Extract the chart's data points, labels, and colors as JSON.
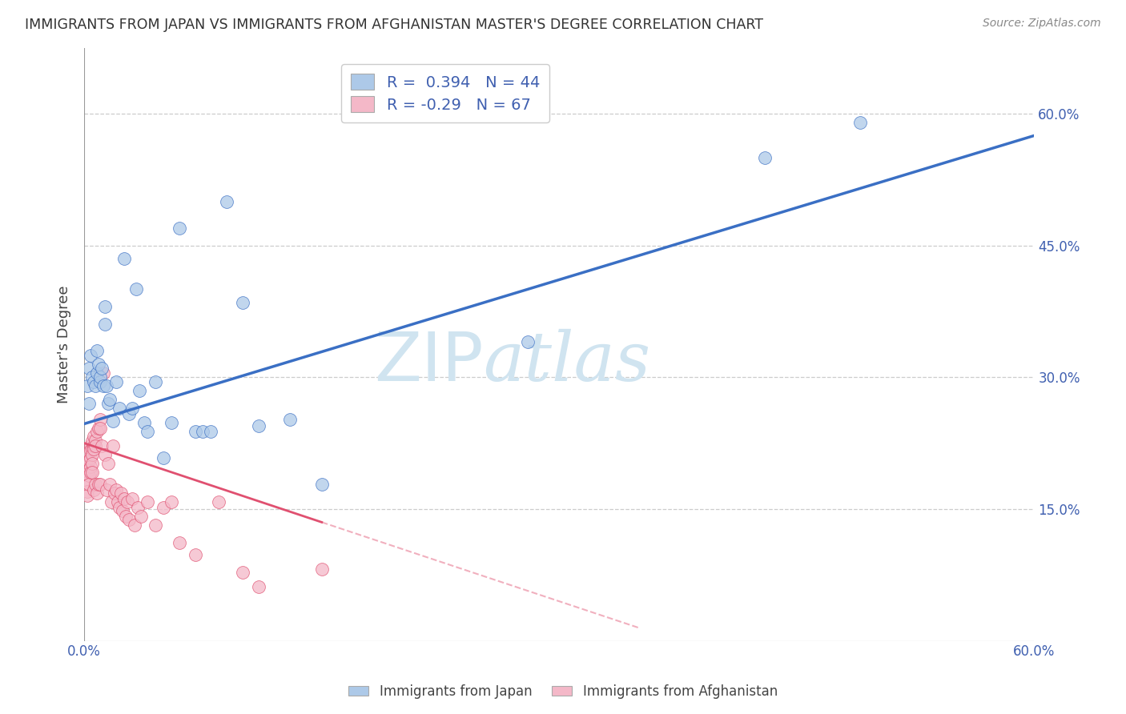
{
  "title": "IMMIGRANTS FROM JAPAN VS IMMIGRANTS FROM AFGHANISTAN MASTER'S DEGREE CORRELATION CHART",
  "source": "Source: ZipAtlas.com",
  "ylabel": "Master's Degree",
  "legend_japan_label": "Immigrants from Japan",
  "legend_afghanistan_label": "Immigrants from Afghanistan",
  "japan_R": 0.394,
  "japan_N": 44,
  "afghanistan_R": -0.29,
  "afghanistan_N": 67,
  "japan_color": "#adc9e8",
  "japan_line_color": "#3a6fc4",
  "afghanistan_color": "#f4b8c8",
  "afghanistan_line_color": "#e05070",
  "watermark_color": "#d0e4f0",
  "background_color": "#ffffff",
  "grid_color": "#cccccc",
  "xlim": [
    0.0,
    0.6
  ],
  "ylim": [
    0.0,
    0.675
  ],
  "y_tick_values": [
    0.15,
    0.3,
    0.45,
    0.6
  ],
  "japan_line_x0": 0.0,
  "japan_line_y0": 0.247,
  "japan_line_x1": 0.6,
  "japan_line_y1": 0.575,
  "afghanistan_line_x0": 0.0,
  "afghanistan_line_y0": 0.225,
  "afghanistan_line_x1": 0.15,
  "afghanistan_line_y1": 0.135,
  "afghanistan_line_solid_end": 0.15,
  "japan_x": [
    0.002,
    0.003,
    0.003,
    0.004,
    0.005,
    0.006,
    0.007,
    0.008,
    0.008,
    0.009,
    0.01,
    0.01,
    0.011,
    0.012,
    0.013,
    0.013,
    0.014,
    0.015,
    0.016,
    0.018,
    0.02,
    0.022,
    0.025,
    0.028,
    0.03,
    0.033,
    0.035,
    0.038,
    0.04,
    0.045,
    0.05,
    0.055,
    0.06,
    0.07,
    0.075,
    0.08,
    0.09,
    0.1,
    0.11,
    0.13,
    0.15,
    0.28,
    0.43,
    0.49
  ],
  "japan_y": [
    0.29,
    0.31,
    0.27,
    0.325,
    0.3,
    0.295,
    0.29,
    0.33,
    0.305,
    0.315,
    0.295,
    0.3,
    0.31,
    0.29,
    0.38,
    0.36,
    0.29,
    0.27,
    0.275,
    0.25,
    0.295,
    0.265,
    0.435,
    0.258,
    0.265,
    0.4,
    0.285,
    0.248,
    0.238,
    0.295,
    0.208,
    0.248,
    0.47,
    0.238,
    0.238,
    0.238,
    0.5,
    0.385,
    0.245,
    0.252,
    0.178,
    0.34,
    0.55,
    0.59
  ],
  "afghanistan_x": [
    0.001,
    0.001,
    0.002,
    0.002,
    0.002,
    0.002,
    0.003,
    0.003,
    0.003,
    0.003,
    0.003,
    0.004,
    0.004,
    0.004,
    0.004,
    0.004,
    0.005,
    0.005,
    0.005,
    0.005,
    0.005,
    0.006,
    0.006,
    0.006,
    0.006,
    0.007,
    0.007,
    0.007,
    0.008,
    0.008,
    0.009,
    0.009,
    0.01,
    0.01,
    0.01,
    0.011,
    0.012,
    0.013,
    0.014,
    0.015,
    0.016,
    0.017,
    0.018,
    0.019,
    0.02,
    0.021,
    0.022,
    0.023,
    0.024,
    0.025,
    0.026,
    0.027,
    0.028,
    0.03,
    0.032,
    0.034,
    0.036,
    0.04,
    0.045,
    0.05,
    0.055,
    0.06,
    0.07,
    0.085,
    0.1,
    0.11,
    0.15
  ],
  "afghanistan_y": [
    0.205,
    0.195,
    0.19,
    0.18,
    0.17,
    0.165,
    0.215,
    0.205,
    0.195,
    0.188,
    0.178,
    0.222,
    0.217,
    0.208,
    0.198,
    0.192,
    0.227,
    0.218,
    0.212,
    0.202,
    0.192,
    0.233,
    0.222,
    0.218,
    0.172,
    0.228,
    0.222,
    0.178,
    0.238,
    0.168,
    0.242,
    0.178,
    0.252,
    0.242,
    0.178,
    0.222,
    0.305,
    0.212,
    0.172,
    0.202,
    0.178,
    0.158,
    0.222,
    0.168,
    0.172,
    0.158,
    0.152,
    0.168,
    0.148,
    0.162,
    0.142,
    0.158,
    0.138,
    0.162,
    0.132,
    0.152,
    0.142,
    0.158,
    0.132,
    0.152,
    0.158,
    0.112,
    0.098,
    0.158,
    0.078,
    0.062,
    0.082
  ]
}
